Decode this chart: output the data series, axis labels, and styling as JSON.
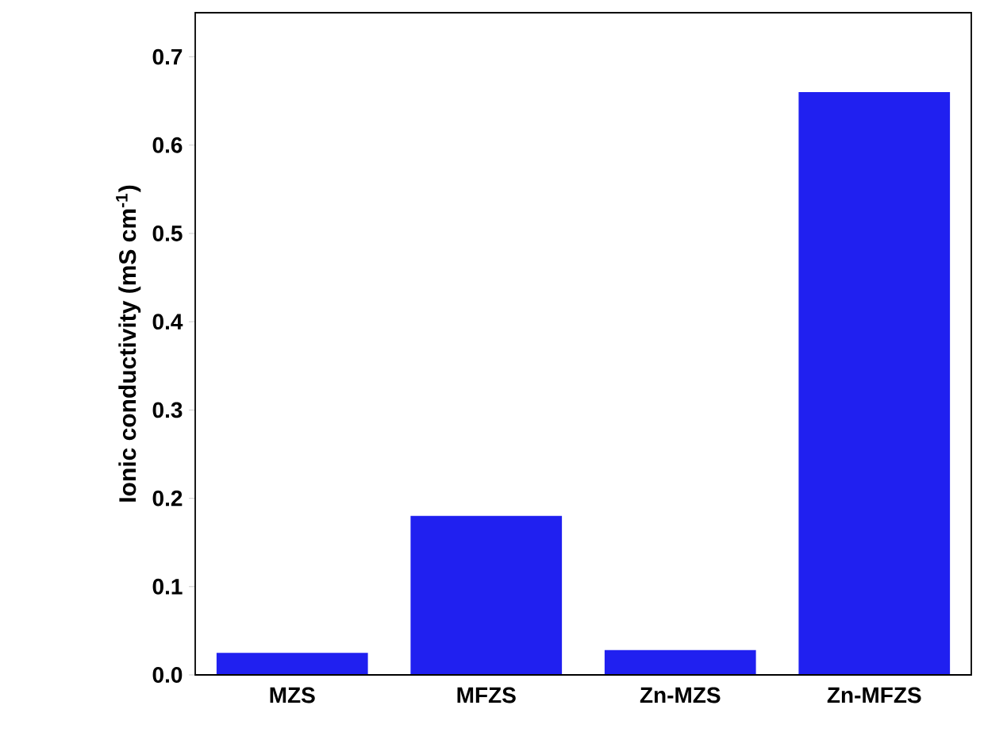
{
  "chart_data": {
    "type": "bar",
    "ylabel": "Ionic conductivity (mS cm$^{-1}$)",
    "categories": [
      "MZS",
      "MFZS",
      "Zn-MZS",
      "Zn-MFZS"
    ],
    "values": [
      0.025,
      0.18,
      0.028,
      0.66
    ],
    "color": "#2020f0",
    "ylim": [
      0,
      0.75
    ],
    "yticks": [
      {
        "value": 0,
        "label": "0.0"
      },
      {
        "value": 0.1,
        "label": "0.1"
      },
      {
        "value": 0.2,
        "label": "0.2"
      },
      {
        "value": 0.3,
        "label": "0.3"
      },
      {
        "value": 0.4,
        "label": "0.4"
      },
      {
        "value": 0.5,
        "label": "0.5"
      },
      {
        "value": 0.6,
        "label": "0.6"
      },
      {
        "value": 0.7,
        "label": "0.7"
      }
    ],
    "grid": false
  }
}
